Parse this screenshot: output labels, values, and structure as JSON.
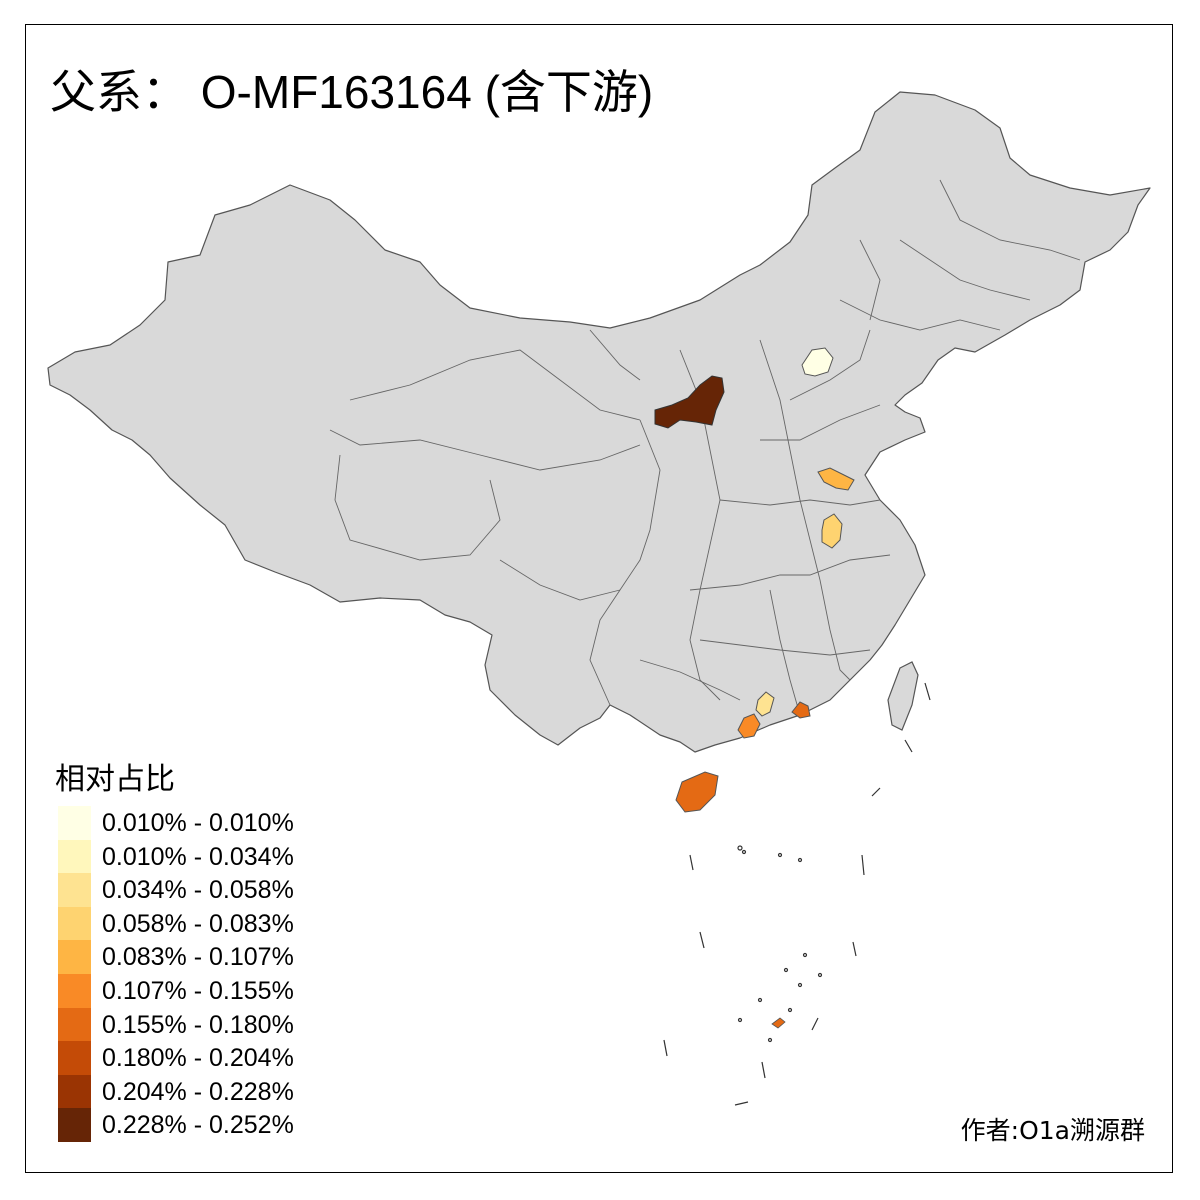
{
  "title": "父系： O-MF163164 (含下游)",
  "author": "作者:O1a溯源群",
  "legend": {
    "title": "相对占比",
    "items": [
      {
        "label": "0.010% - 0.010%",
        "color": "#FFFFE5"
      },
      {
        "label": "0.010% - 0.034%",
        "color": "#FFF7BC"
      },
      {
        "label": "0.034% - 0.058%",
        "color": "#FEE391"
      },
      {
        "label": "0.058% - 0.083%",
        "color": "#FED370"
      },
      {
        "label": "0.083% - 0.107%",
        "color": "#FEB544"
      },
      {
        "label": "0.107% - 0.155%",
        "color": "#F98A26"
      },
      {
        "label": "0.155% - 0.180%",
        "color": "#E46A14"
      },
      {
        "label": "0.180% - 0.204%",
        "color": "#C44B07"
      },
      {
        "label": "0.204% - 0.228%",
        "color": "#9A3403"
      },
      {
        "label": "0.228% - 0.252%",
        "color": "#662506"
      }
    ]
  },
  "map": {
    "base_color": "#D9D9D9",
    "border_color": "#555555",
    "highlighted_regions": [
      {
        "name": "Beijing",
        "class": 0
      },
      {
        "name": "Northern Shaanxi (Yulin)",
        "class": 9
      },
      {
        "name": "Xuzhou",
        "class": 4
      },
      {
        "name": "Central Anhui",
        "class": 3
      },
      {
        "name": "Northern Guangdong",
        "class": 2
      },
      {
        "name": "Western Guangdong",
        "class": 5
      },
      {
        "name": "Eastern Guangdong",
        "class": 6
      },
      {
        "name": "Hainan",
        "class": 6
      },
      {
        "name": "Spratly reef",
        "class": 6
      }
    ]
  }
}
